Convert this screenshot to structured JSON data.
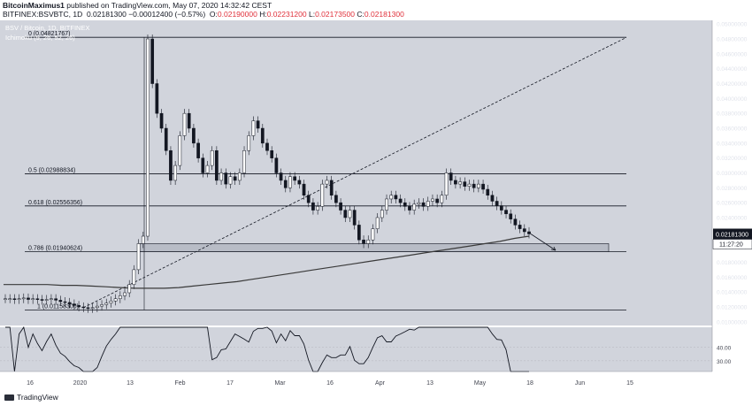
{
  "header": {
    "author": "BitcoinMaximus1",
    "published_text": "published on TradingView.com, May 07, 2020 14:32:42 CEST",
    "symbol": "BITFINEX:BSVBTC, 1D",
    "change": "0.02181300 −0.00012400 (−0.57%)",
    "ohlc_labels": [
      "O:",
      "H:",
      "L:",
      "C:"
    ],
    "ohlc_values": [
      "0.02190000",
      "0.02231200",
      "0.02173500",
      "0.02181300"
    ]
  },
  "legend": {
    "title": "BSV / Bitcoin, 1D, BITFINEX",
    "indicator": "Ichimoku (9, 26, 52, 26)"
  },
  "footer": {
    "brand": "TradingView"
  },
  "colors": {
    "background": "#d1d4dc",
    "candle": "#ffffff",
    "candle_outline": "#131722",
    "fib_line": "#131722",
    "moving_average": "#3a3a3a",
    "support_zone": "#b8bcc6",
    "price_label_bg": "#131722"
  },
  "chart_data": {
    "type": "candlestick",
    "title": "BSV / Bitcoin, 1D, BITFINEX",
    "ylim": [
      0.0095,
      0.0505
    ],
    "y_ticks": [
      "0.05000000",
      "0.04800000",
      "0.04600000",
      "0.04400000",
      "0.04200000",
      "0.04000000",
      "0.03800000",
      "0.03600000",
      "0.03400000",
      "0.03200000",
      "0.03000000",
      "0.02800000",
      "0.02600000",
      "0.02400000",
      "0.02200000",
      "0.02000000",
      "0.01800000",
      "0.01600000",
      "0.01400000",
      "0.01200000",
      "0.01000000"
    ],
    "x_ticks": [
      "16",
      "2020",
      "13",
      "Feb",
      "17",
      "Mar",
      "16",
      "Apr",
      "13",
      "May",
      "18",
      "Jun",
      "15"
    ],
    "last_price": "0.02181300",
    "countdown": "11:27:20",
    "fib_levels": [
      {
        "label": "0 (0.04821767)",
        "value": 0.04821767
      },
      {
        "label": "0.5 (0.02988834)",
        "value": 0.02988834
      },
      {
        "label": "0.618 (0.02556356)",
        "value": 0.02556356
      },
      {
        "label": "0.786 (0.01940624)",
        "value": 0.01940624
      },
      {
        "label": "1 (0.01158300)",
        "value": 0.011583
      }
    ],
    "support_zone": [
      0.0194,
      0.0205
    ],
    "rsi": {
      "ticks": [
        "40.00",
        "30.00"
      ]
    },
    "series": [
      {
        "name": "BSVBTC",
        "close": [
          0.0131,
          0.0131,
          0.013,
          0.0131,
          0.0132,
          0.013,
          0.0131,
          0.013,
          0.0129,
          0.013,
          0.0131,
          0.0129,
          0.0127,
          0.0126,
          0.0124,
          0.0122,
          0.012,
          0.0119,
          0.0118,
          0.0119,
          0.0121,
          0.0123,
          0.0125,
          0.0128,
          0.0131,
          0.0135,
          0.0139,
          0.015,
          0.017,
          0.0205,
          0.0215,
          0.048,
          0.042,
          0.038,
          0.036,
          0.033,
          0.029,
          0.031,
          0.035,
          0.038,
          0.036,
          0.034,
          0.032,
          0.03,
          0.031,
          0.033,
          0.029,
          0.03,
          0.0285,
          0.0295,
          0.029,
          0.03,
          0.033,
          0.035,
          0.037,
          0.036,
          0.034,
          0.033,
          0.032,
          0.03,
          0.029,
          0.028,
          0.0295,
          0.029,
          0.0285,
          0.027,
          0.026,
          0.025,
          0.0255,
          0.0285,
          0.029,
          0.027,
          0.026,
          0.025,
          0.024,
          0.025,
          0.023,
          0.021,
          0.0205,
          0.021,
          0.0225,
          0.024,
          0.025,
          0.0265,
          0.027,
          0.0265,
          0.026,
          0.0255,
          0.025,
          0.0258,
          0.026,
          0.0255,
          0.0262,
          0.0265,
          0.026,
          0.027,
          0.03,
          0.029,
          0.0285,
          0.0288,
          0.0282,
          0.0285,
          0.028,
          0.0285,
          0.0278,
          0.027,
          0.0262,
          0.0256,
          0.025,
          0.0245,
          0.0238,
          0.023,
          0.0225,
          0.0221,
          0.0218
        ]
      },
      {
        "name": "Moving average",
        "values": [
          0.015,
          0.015,
          0.015,
          0.015,
          0.0149,
          0.0149,
          0.0148,
          0.0147,
          0.0146,
          0.0145,
          0.0145,
          0.0145,
          0.0146,
          0.0148,
          0.015,
          0.0152,
          0.0154,
          0.0157,
          0.016,
          0.0163,
          0.0166,
          0.0169,
          0.0172,
          0.0175,
          0.0178,
          0.0181,
          0.0184,
          0.0187,
          0.019,
          0.0193,
          0.0196,
          0.0199,
          0.0202,
          0.0205,
          0.0208,
          0.0212,
          0.0215
        ]
      }
    ]
  }
}
